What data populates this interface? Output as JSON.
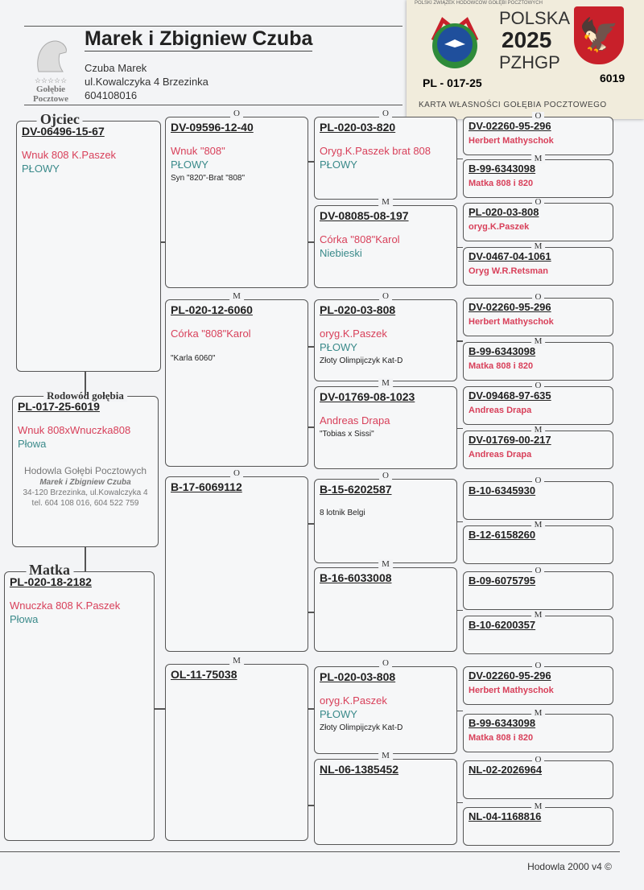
{
  "header": {
    "title": "Marek i Zbigniew Czuba",
    "owner": "Czuba Marek",
    "address": "ul.Kowalczyka 4  Brzezinka",
    "phone": "604108016",
    "logo_text": "Gołębie Pocztowe"
  },
  "card": {
    "top_text": "POLSKI ZWIĄZEK HODOWCÓW GOŁĘBI POCZTOWYCH",
    "country": "POLSKA",
    "year": "2025",
    "org": "PZHGP",
    "ring_prefix": "PL - 017-25",
    "ring_number": "6019",
    "caption": "KARTA WŁASNOŚCI GOŁĘBIA POCZTOWEGO",
    "colors": {
      "red": "#c8202a",
      "green": "#2e8b3a",
      "blue": "#1f4f9c"
    }
  },
  "colors": {
    "name": "#d8405a",
    "color": "#3a8a8a",
    "note": "#222222"
  },
  "subject": {
    "label": "Rodowód gołębia",
    "code": "PL-017-25-6019",
    "lines": [
      {
        "t": "Wnuk 808xWnuczka808",
        "k": "name"
      },
      {
        "t": "Płowa",
        "k": "color"
      }
    ],
    "breeder": [
      "Hodowla Gołębi Pocztowych",
      "Marek i Zbigniew Czuba",
      "34-120 Brzezinka, ul.Kowalczyka 4",
      "tel. 604 108 016, 604 522 759"
    ]
  },
  "father": {
    "label": "Ojciec",
    "code": "DV-06496-15-67",
    "lines": [
      {
        "t": "Wnuk 808 K.Paszek",
        "k": "name"
      },
      {
        "t": "PŁOWY",
        "k": "color"
      }
    ]
  },
  "mother": {
    "label": "Matka",
    "code": "PL-020-18-2182",
    "lines": [
      {
        "t": "Wnuczka 808 K.Paszek",
        "k": "name"
      },
      {
        "t": "Płowa",
        "k": "color"
      }
    ]
  },
  "col2": [
    {
      "label": "O",
      "code": "DV-09596-12-40",
      "lines": [
        {
          "t": "Wnuk \"808\"",
          "k": "name"
        },
        {
          "t": "PŁOWY",
          "k": "color"
        },
        {
          "t": "Syn \"820\"-Brat \"808\"",
          "k": "small"
        }
      ]
    },
    {
      "label": "M",
      "code": "PL-020-12-6060",
      "lines": [
        {
          "t": "Córka \"808\"Karol",
          "k": "name"
        },
        {
          "t": "",
          "k": "small"
        },
        {
          "t": "\"Karla 6060\"",
          "k": "small"
        }
      ]
    },
    {
      "label": "O",
      "code": "B-17-6069112",
      "lines": []
    },
    {
      "label": "M",
      "code": "OL-11-75038",
      "lines": []
    }
  ],
  "col3": [
    {
      "label": "O",
      "code": "PL-020-03-820",
      "lines": [
        {
          "t": "Oryg.K.Paszek brat 808",
          "k": "name"
        },
        {
          "t": "PŁOWY",
          "k": "color"
        }
      ]
    },
    {
      "label": "M",
      "code": "DV-08085-08-197",
      "lines": [
        {
          "t": "Córka \"808\"Karol",
          "k": "name"
        },
        {
          "t": "Niebieski",
          "k": "color"
        }
      ]
    },
    {
      "label": "O",
      "code": "PL-020-03-808",
      "lines": [
        {
          "t": "oryg.K.Paszek",
          "k": "name"
        },
        {
          "t": "PŁOWY",
          "k": "color"
        },
        {
          "t": "Złoty Olimpijczyk Kat-D",
          "k": "small"
        }
      ]
    },
    {
      "label": "M",
      "code": "DV-01769-08-1023",
      "lines": [
        {
          "t": "Andreas Drapa",
          "k": "name"
        },
        {
          "t": "\"Tobias x Sissi\"",
          "k": "small"
        }
      ]
    },
    {
      "label": "O",
      "code": "B-15-6202587",
      "lines": [
        {
          "t": "8 lotnik Belgi",
          "k": "small"
        }
      ]
    },
    {
      "label": "M",
      "code": "B-16-6033008",
      "lines": []
    },
    {
      "label": "O",
      "code": "PL-020-03-808",
      "lines": [
        {
          "t": "oryg.K.Paszek",
          "k": "name"
        },
        {
          "t": "PŁOWY",
          "k": "color"
        },
        {
          "t": "Złoty Olimpijczyk Kat-D",
          "k": "small"
        }
      ]
    },
    {
      "label": "M",
      "code": "NL-06-1385452",
      "lines": []
    }
  ],
  "col4": [
    {
      "label": "O",
      "code": "DV-02260-95-296",
      "lines": [
        {
          "t": "Herbert Mathyschok",
          "k": "name"
        }
      ]
    },
    {
      "label": "M",
      "code": "B-99-6343098",
      "lines": [
        {
          "t": "Matka 808 i 820",
          "k": "name"
        }
      ]
    },
    {
      "label": "O",
      "code": "PL-020-03-808",
      "lines": [
        {
          "t": "oryg.K.Paszek",
          "k": "name"
        }
      ]
    },
    {
      "label": "M",
      "code": "DV-0467-04-1061",
      "lines": [
        {
          "t": "Oryg W.R.Retsman",
          "k": "name"
        }
      ]
    },
    {
      "label": "O",
      "code": "DV-02260-95-296",
      "lines": [
        {
          "t": "Herbert Mathyschok",
          "k": "name"
        }
      ]
    },
    {
      "label": "M",
      "code": "B-99-6343098",
      "lines": [
        {
          "t": "Matka 808 i 820",
          "k": "name"
        }
      ]
    },
    {
      "label": "O",
      "code": "DV-09468-97-635",
      "lines": [
        {
          "t": "Andreas Drapa",
          "k": "name"
        }
      ]
    },
    {
      "label": "M",
      "code": "DV-01769-00-217",
      "lines": [
        {
          "t": "Andreas Drapa",
          "k": "name"
        }
      ]
    },
    {
      "label": "O",
      "code": "B-10-6345930",
      "lines": []
    },
    {
      "label": "M",
      "code": "B-12-6158260",
      "lines": []
    },
    {
      "label": "O",
      "code": "B-09-6075795",
      "lines": []
    },
    {
      "label": "M",
      "code": "B-10-6200357",
      "lines": []
    },
    {
      "label": "O",
      "code": "DV-02260-95-296",
      "lines": [
        {
          "t": "Herbert Mathyschok",
          "k": "name"
        }
      ]
    },
    {
      "label": "M",
      "code": "B-99-6343098",
      "lines": [
        {
          "t": "Matka 808 i 820",
          "k": "name"
        }
      ]
    },
    {
      "label": "O",
      "code": "NL-02-2026964",
      "lines": []
    },
    {
      "label": "M",
      "code": "NL-04-1168816",
      "lines": []
    }
  ],
  "footer": "Hodowla 2000 v4 ©"
}
